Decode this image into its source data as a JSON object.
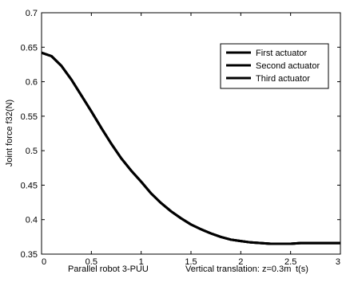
{
  "chart_data": {
    "type": "line",
    "ylabel": "Joint force f32(N)",
    "xlabel": "t(s)",
    "xlim": [
      0,
      3
    ],
    "ylim": [
      0.35,
      0.7
    ],
    "xticks": [
      0,
      0.5,
      1,
      1.5,
      2,
      2.5,
      3
    ],
    "xtick_labels": [
      "0",
      "0.5",
      "1",
      "1.5",
      "2",
      "2.5",
      "3"
    ],
    "yticks": [
      0.35,
      0.4,
      0.45,
      0.5,
      0.55,
      0.6,
      0.65,
      0.7
    ],
    "ytick_labels": [
      "0.35",
      "0.4",
      "0.45",
      "0.5",
      "0.55",
      "0.6",
      "0.65",
      "0.7"
    ],
    "grid": false,
    "legend_position": "top-right",
    "annotations": [
      "Parallel robot 3-PUU",
      "Vertical translation: z=0.3m"
    ],
    "series": [
      {
        "name": "First actuator",
        "color": "#000000",
        "x": [
          0,
          0.1,
          0.2,
          0.3,
          0.4,
          0.5,
          0.6,
          0.7,
          0.8,
          0.9,
          1.0,
          1.1,
          1.2,
          1.3,
          1.4,
          1.5,
          1.6,
          1.7,
          1.8,
          1.9,
          2.0,
          2.1,
          2.2,
          2.3,
          2.4,
          2.5,
          2.6,
          2.7,
          2.8,
          2.9,
          3.0
        ],
        "y": [
          0.642,
          0.637,
          0.623,
          0.603,
          0.58,
          0.557,
          0.533,
          0.51,
          0.489,
          0.471,
          0.455,
          0.438,
          0.424,
          0.412,
          0.402,
          0.393,
          0.386,
          0.38,
          0.375,
          0.371,
          0.369,
          0.367,
          0.366,
          0.365,
          0.365,
          0.365,
          0.366,
          0.366,
          0.366,
          0.366,
          0.366
        ]
      },
      {
        "name": "Second actuator",
        "color": "#000000",
        "x": [
          0,
          0.1,
          0.2,
          0.3,
          0.4,
          0.5,
          0.6,
          0.7,
          0.8,
          0.9,
          1.0,
          1.1,
          1.2,
          1.3,
          1.4,
          1.5,
          1.6,
          1.7,
          1.8,
          1.9,
          2.0,
          2.1,
          2.2,
          2.3,
          2.4,
          2.5,
          2.6,
          2.7,
          2.8,
          2.9,
          3.0
        ],
        "y": [
          0.642,
          0.637,
          0.623,
          0.603,
          0.58,
          0.557,
          0.533,
          0.51,
          0.489,
          0.471,
          0.455,
          0.438,
          0.424,
          0.412,
          0.402,
          0.393,
          0.386,
          0.38,
          0.375,
          0.371,
          0.369,
          0.367,
          0.366,
          0.365,
          0.365,
          0.365,
          0.366,
          0.366,
          0.366,
          0.366,
          0.366
        ]
      },
      {
        "name": "Third actuator",
        "color": "#000000",
        "x": [
          0,
          0.1,
          0.2,
          0.3,
          0.4,
          0.5,
          0.6,
          0.7,
          0.8,
          0.9,
          1.0,
          1.1,
          1.2,
          1.3,
          1.4,
          1.5,
          1.6,
          1.7,
          1.8,
          1.9,
          2.0,
          2.1,
          2.2,
          2.3,
          2.4,
          2.5,
          2.6,
          2.7,
          2.8,
          2.9,
          3.0
        ],
        "y": [
          0.642,
          0.637,
          0.623,
          0.603,
          0.58,
          0.557,
          0.533,
          0.51,
          0.489,
          0.471,
          0.455,
          0.438,
          0.424,
          0.412,
          0.402,
          0.393,
          0.386,
          0.38,
          0.375,
          0.371,
          0.369,
          0.367,
          0.366,
          0.365,
          0.365,
          0.365,
          0.366,
          0.366,
          0.366,
          0.366,
          0.366
        ]
      }
    ]
  }
}
